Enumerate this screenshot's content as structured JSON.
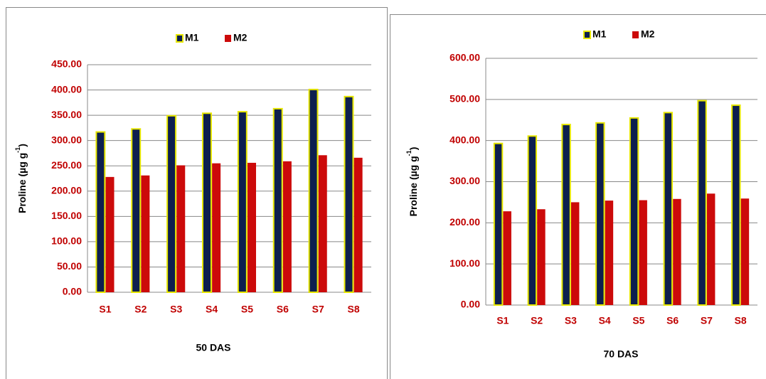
{
  "chart_data": [
    {
      "type": "bar",
      "legend": "top",
      "y_label": {
        "text": "Proline (µg g",
        "sup": "-1",
        "end": ")"
      },
      "x_label": "50 DAS",
      "categories": [
        "S1",
        "S2",
        "S3",
        "S4",
        "S5",
        "S6",
        "S7",
        "S8"
      ],
      "series": [
        {
          "name": "M1",
          "color": "#0d1f4f",
          "values": [
            317,
            323,
            349,
            354,
            357,
            363,
            401,
            387
          ]
        },
        {
          "name": "M2",
          "color": "#cc0a0a",
          "values": [
            228,
            231,
            251,
            255,
            256,
            259,
            271,
            266
          ]
        }
      ],
      "ylim": [
        0,
        450
      ],
      "yticks": [
        {
          "value": 0,
          "label": "0.00"
        },
        {
          "value": 50,
          "label": "50.00"
        },
        {
          "value": 100,
          "label": "100.00"
        },
        {
          "value": 150,
          "label": "150.00"
        },
        {
          "value": 200,
          "label": "200.00"
        },
        {
          "value": 250,
          "label": "250.00"
        },
        {
          "value": 300,
          "label": "300.00"
        },
        {
          "value": 350,
          "label": "350.00"
        },
        {
          "value": 400,
          "label": "400.00"
        },
        {
          "value": 450,
          "label": "450.00"
        }
      ],
      "grid": true
    },
    {
      "type": "bar",
      "legend": "top",
      "y_label": {
        "text": "Proline (µg g",
        "sup": "-1",
        "end": ")"
      },
      "x_label": "70 DAS",
      "categories": [
        "S1",
        "S2",
        "S3",
        "S4",
        "S5",
        "S6",
        "S7",
        "S8"
      ],
      "series": [
        {
          "name": "M1",
          "color": "#0d1f4f",
          "values": [
            393,
            411,
            439,
            443,
            455,
            468,
            497,
            486
          ]
        },
        {
          "name": "M2",
          "color": "#cc0a0a",
          "values": [
            228,
            233,
            250,
            254,
            255,
            258,
            271,
            259
          ]
        }
      ],
      "ylim": [
        0,
        600
      ],
      "yticks": [
        {
          "value": 0,
          "label": "0.00"
        },
        {
          "value": 100,
          "label": "100.00"
        },
        {
          "value": 200,
          "label": "200.00"
        },
        {
          "value": 300,
          "label": "300.00"
        },
        {
          "value": 400,
          "label": "400.00"
        },
        {
          "value": 500,
          "label": "500.00"
        },
        {
          "value": 600,
          "label": "600.00"
        }
      ],
      "grid": true
    }
  ]
}
